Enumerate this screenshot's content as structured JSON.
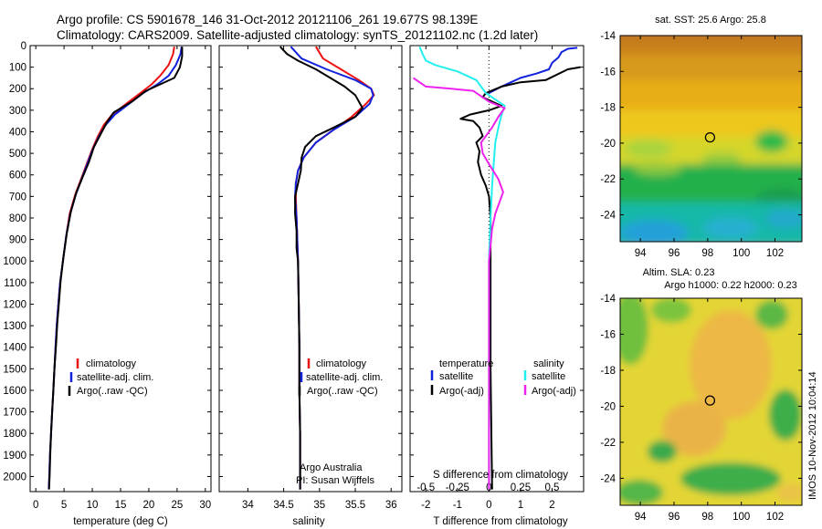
{
  "header": {
    "line1": "Argo profile: CS 5901678_146 31-Oct-2012 20121106_261 19.677S 98.139E",
    "line2": "Climatology: CARS2009. Satellite-adjusted climatology: synTS_20121102.nc (1.2d later)"
  },
  "colors": {
    "climatology": "#ee1111",
    "satellite": "#1122dd",
    "argo": "#000000",
    "satellite_s": "#22eeee",
    "argo_s": "#ee22ee"
  },
  "chart_data": [
    {
      "id": "temperature",
      "type": "line",
      "xlabel": "temperature (deg C)",
      "xlim": [
        -1,
        31
      ],
      "xticks": [
        0,
        5,
        10,
        15,
        20,
        25,
        30
      ],
      "ylim": [
        2070,
        0
      ],
      "yticks": [
        0,
        100,
        200,
        300,
        400,
        500,
        600,
        700,
        800,
        900,
        1000,
        1100,
        1200,
        1300,
        1400,
        1500,
        1600,
        1700,
        1800,
        1900,
        2000
      ],
      "legend": [
        "climatology",
        "satellite-adj. clim.",
        "Argo(..raw -QC)"
      ],
      "series": [
        {
          "name": "climatology",
          "color": "#ee1111",
          "points": [
            [
              24.5,
              5
            ],
            [
              24.3,
              40
            ],
            [
              23.5,
              90
            ],
            [
              22.0,
              140
            ],
            [
              20.5,
              180
            ],
            [
              18.5,
              220
            ],
            [
              16.0,
              270
            ],
            [
              13.5,
              320
            ],
            [
              12.0,
              370
            ],
            [
              11.0,
              420
            ],
            [
              10.0,
              480
            ],
            [
              9.0,
              550
            ],
            [
              8.0,
              620
            ],
            [
              7.0,
              690
            ],
            [
              6.0,
              780
            ],
            [
              5.4,
              880
            ],
            [
              4.8,
              1000
            ],
            [
              4.3,
              1100
            ],
            [
              4.0,
              1200
            ],
            [
              3.7,
              1300
            ],
            [
              3.5,
              1400
            ],
            [
              3.3,
              1500
            ],
            [
              3.1,
              1600
            ],
            [
              2.9,
              1700
            ],
            [
              2.7,
              1800
            ],
            [
              2.5,
              1900
            ],
            [
              2.4,
              2000
            ],
            [
              2.3,
              2060
            ]
          ]
        },
        {
          "name": "satellite-adj. clim.",
          "color": "#1122dd",
          "points": [
            [
              25.8,
              5
            ],
            [
              25.6,
              40
            ],
            [
              24.8,
              90
            ],
            [
              23.5,
              140
            ],
            [
              21.5,
              180
            ],
            [
              19.0,
              220
            ],
            [
              16.5,
              270
            ],
            [
              14.0,
              320
            ],
            [
              12.3,
              370
            ],
            [
              11.2,
              420
            ],
            [
              10.1,
              480
            ],
            [
              9.1,
              550
            ],
            [
              8.1,
              620
            ],
            [
              7.1,
              690
            ],
            [
              6.1,
              780
            ],
            [
              5.4,
              880
            ],
            [
              4.8,
              1000
            ],
            [
              4.3,
              1100
            ],
            [
              4.0,
              1200
            ],
            [
              3.7,
              1300
            ],
            [
              3.5,
              1400
            ],
            [
              3.3,
              1500
            ],
            [
              3.1,
              1600
            ],
            [
              2.9,
              1700
            ],
            [
              2.7,
              1800
            ],
            [
              2.5,
              1900
            ],
            [
              2.4,
              2000
            ],
            [
              2.3,
              2060
            ]
          ]
        },
        {
          "name": "Argo(..raw -QC)",
          "color": "#000000",
          "points": [
            [
              25.9,
              5
            ],
            [
              25.9,
              50
            ],
            [
              25.5,
              100
            ],
            [
              24.5,
              150
            ],
            [
              22.0,
              180
            ],
            [
              19.5,
              210
            ],
            [
              17.0,
              260
            ],
            [
              13.8,
              310
            ],
            [
              12.5,
              360
            ],
            [
              11.5,
              410
            ],
            [
              10.3,
              470
            ],
            [
              9.4,
              540
            ],
            [
              8.3,
              610
            ],
            [
              7.2,
              680
            ],
            [
              6.2,
              770
            ],
            [
              5.5,
              870
            ],
            [
              4.9,
              980
            ],
            [
              4.4,
              1090
            ],
            [
              4.1,
              1190
            ],
            [
              3.8,
              1290
            ],
            [
              3.55,
              1400
            ],
            [
              3.3,
              1500
            ],
            [
              3.1,
              1600
            ],
            [
              2.9,
              1700
            ],
            [
              2.7,
              1800
            ],
            [
              2.55,
              1900
            ],
            [
              2.45,
              2000
            ],
            [
              2.35,
              2060
            ]
          ]
        }
      ]
    },
    {
      "id": "salinity",
      "type": "line",
      "xlabel": "salinity",
      "xlim": [
        33.6,
        36.15
      ],
      "xticks": [
        34,
        34.5,
        35,
        35.5,
        36
      ],
      "ylim": [
        2070,
        0
      ],
      "legend": [
        "climatology",
        "satellite-adj. clim.",
        "Argo(..raw -QC)"
      ],
      "annotations": [
        "Argo Australia",
        "PI: Susan Wijffels"
      ],
      "series": [
        {
          "name": "climatology",
          "color": "#ee1111",
          "points": [
            [
              34.95,
              5
            ],
            [
              35.05,
              60
            ],
            [
              35.3,
              110
            ],
            [
              35.55,
              160
            ],
            [
              35.72,
              200
            ],
            [
              35.76,
              230
            ],
            [
              35.65,
              270
            ],
            [
              35.45,
              330
            ],
            [
              35.2,
              390
            ],
            [
              34.95,
              450
            ],
            [
              34.78,
              520
            ],
            [
              34.7,
              580
            ],
            [
              34.67,
              640
            ],
            [
              34.67,
              700
            ],
            [
              34.68,
              800
            ],
            [
              34.69,
              900
            ],
            [
              34.7,
              1000
            ],
            [
              34.71,
              1200
            ],
            [
              34.72,
              1400
            ],
            [
              34.72,
              1600
            ],
            [
              34.73,
              1800
            ],
            [
              34.73,
              2060
            ]
          ]
        },
        {
          "name": "satellite-adj. clim.",
          "color": "#1122dd",
          "points": [
            [
              34.6,
              5
            ],
            [
              34.75,
              60
            ],
            [
              35.1,
              110
            ],
            [
              35.5,
              160
            ],
            [
              35.72,
              200
            ],
            [
              35.75,
              230
            ],
            [
              35.7,
              270
            ],
            [
              35.5,
              330
            ],
            [
              35.2,
              390
            ],
            [
              34.95,
              450
            ],
            [
              34.78,
              520
            ],
            [
              34.7,
              580
            ],
            [
              34.67,
              640
            ],
            [
              34.66,
              700
            ],
            [
              34.68,
              800
            ],
            [
              34.69,
              900
            ],
            [
              34.7,
              1000
            ],
            [
              34.71,
              1200
            ],
            [
              34.72,
              1400
            ],
            [
              34.72,
              1600
            ],
            [
              34.73,
              1800
            ],
            [
              34.73,
              2060
            ]
          ]
        },
        {
          "name": "Argo(..raw -QC)",
          "color": "#000000",
          "points": [
            [
              34.45,
              5
            ],
            [
              34.55,
              40
            ],
            [
              34.7,
              70
            ],
            [
              34.95,
              110
            ],
            [
              35.15,
              150
            ],
            [
              35.35,
              190
            ],
            [
              35.5,
              230
            ],
            [
              35.6,
              290
            ],
            [
              35.5,
              330
            ],
            [
              35.2,
              380
            ],
            [
              34.95,
              420
            ],
            [
              34.8,
              470
            ],
            [
              34.75,
              520
            ],
            [
              34.74,
              580
            ],
            [
              34.7,
              640
            ],
            [
              34.66,
              700
            ],
            [
              34.66,
              780
            ],
            [
              34.68,
              860
            ],
            [
              34.68,
              940
            ],
            [
              34.7,
              1000
            ],
            [
              34.71,
              1200
            ],
            [
              34.72,
              1400
            ],
            [
              34.72,
              1600
            ],
            [
              34.73,
              1800
            ],
            [
              34.73,
              2060
            ]
          ]
        }
      ]
    },
    {
      "id": "difference",
      "type": "line",
      "xlabel": "T difference from climatology",
      "top_xlabel": "S difference from climatology",
      "xlim": [
        -2.5,
        3
      ],
      "xticks": [
        -2,
        -1,
        0,
        1,
        2
      ],
      "top_xticks": [
        -0.5,
        -0.25,
        0,
        0.25,
        0.5
      ],
      "top_xtick_labels": [
        "-0.5",
        "-0.25",
        "0",
        "0.25",
        "0.5"
      ],
      "ylim": [
        2070,
        0
      ],
      "legend_headers": [
        "temperature",
        "salinity"
      ],
      "legend": [
        "satellite",
        "Argo(-adj)",
        "satellite",
        "Argo(-adj)"
      ],
      "series": [
        {
          "name": "satellite",
          "group": "temperature",
          "color": "#1122dd",
          "points": [
            [
              0.0,
              220
            ],
            [
              0.4,
              190
            ],
            [
              0.7,
              170
            ],
            [
              1.0,
              150
            ],
            [
              1.5,
              130
            ],
            [
              1.9,
              110
            ],
            [
              2.0,
              80
            ],
            [
              2.2,
              55
            ],
            [
              2.3,
              30
            ],
            [
              2.5,
              15
            ],
            [
              2.8,
              10
            ]
          ]
        },
        {
          "name": "Argo(-adj)",
          "group": "temperature",
          "color": "#000000",
          "points": [
            [
              2.9,
              100
            ],
            [
              2.5,
              110
            ],
            [
              1.8,
              160
            ],
            [
              1.0,
              170
            ],
            [
              0.4,
              190
            ],
            [
              -0.1,
              220
            ],
            [
              -0.2,
              240
            ],
            [
              0.4,
              280
            ],
            [
              0.0,
              300
            ],
            [
              -0.6,
              320
            ],
            [
              -0.9,
              340
            ],
            [
              -0.5,
              350
            ],
            [
              -0.3,
              380
            ],
            [
              -0.2,
              420
            ],
            [
              -0.4,
              450
            ],
            [
              -0.3,
              490
            ],
            [
              -0.35,
              540
            ],
            [
              -0.25,
              600
            ],
            [
              -0.1,
              650
            ],
            [
              0.0,
              700
            ],
            [
              0.05,
              800
            ],
            [
              0.05,
              1000
            ],
            [
              0.05,
              1500
            ],
            [
              0.1,
              2060
            ]
          ]
        },
        {
          "name": "satellite",
          "group": "salinity",
          "color": "#22eeee",
          "points": [
            [
              -2.2,
              5
            ],
            [
              -2.1,
              40
            ],
            [
              -2.0,
              70
            ],
            [
              -1.7,
              90
            ],
            [
              -1.0,
              120
            ],
            [
              -0.4,
              160
            ],
            [
              -0.1,
              220
            ],
            [
              0.2,
              250
            ],
            [
              0.5,
              280
            ],
            [
              0.4,
              320
            ],
            [
              0.3,
              380
            ],
            [
              0.2,
              450
            ],
            [
              0.15,
              550
            ],
            [
              0.1,
              650
            ],
            [
              0.05,
              800
            ],
            [
              0.0,
              1000
            ],
            [
              0.0,
              1500
            ],
            [
              0.0,
              2060
            ]
          ]
        },
        {
          "name": "Argo(-adj)",
          "group": "salinity",
          "color": "#ee22ee",
          "points": [
            [
              -2.4,
              150
            ],
            [
              -2.0,
              190
            ],
            [
              -1.2,
              200
            ],
            [
              -0.5,
              210
            ],
            [
              0.0,
              260
            ],
            [
              0.5,
              290
            ],
            [
              0.3,
              330
            ],
            [
              0.1,
              380
            ],
            [
              -0.1,
              420
            ],
            [
              -0.25,
              450
            ],
            [
              -0.2,
              500
            ],
            [
              0.0,
              550
            ],
            [
              0.3,
              620
            ],
            [
              0.45,
              680
            ],
            [
              0.35,
              720
            ],
            [
              0.2,
              780
            ],
            [
              0.1,
              850
            ],
            [
              0.0,
              1000
            ],
            [
              0.0,
              1500
            ],
            [
              0.0,
              2060
            ]
          ]
        }
      ]
    },
    {
      "id": "sst-map",
      "type": "heatmap",
      "title": "sat. SST: 25.6 Argo: 25.8",
      "xlim": [
        92.8,
        103.6
      ],
      "ylim": [
        -25.5,
        -14
      ],
      "xticks": [
        94,
        96,
        98,
        100,
        102
      ],
      "yticks": [
        -14,
        -16,
        -18,
        -20,
        -22,
        -24
      ],
      "marker": [
        98.14,
        -19.68
      ]
    },
    {
      "id": "sla-map",
      "type": "heatmap",
      "title": "Altim. SLA: 0.23",
      "subtitle": "Argo h1000: 0.22 h2000: 0.23",
      "xlim": [
        92.8,
        103.6
      ],
      "ylim": [
        -25.5,
        -14
      ],
      "xticks": [
        94,
        96,
        98,
        100,
        102
      ],
      "yticks": [
        -14,
        -16,
        -18,
        -20,
        -22,
        -24
      ],
      "marker": [
        98.14,
        -19.68
      ]
    }
  ],
  "footer": {
    "stamp": "IMOS 10-Nov-2012 10:04:14"
  }
}
